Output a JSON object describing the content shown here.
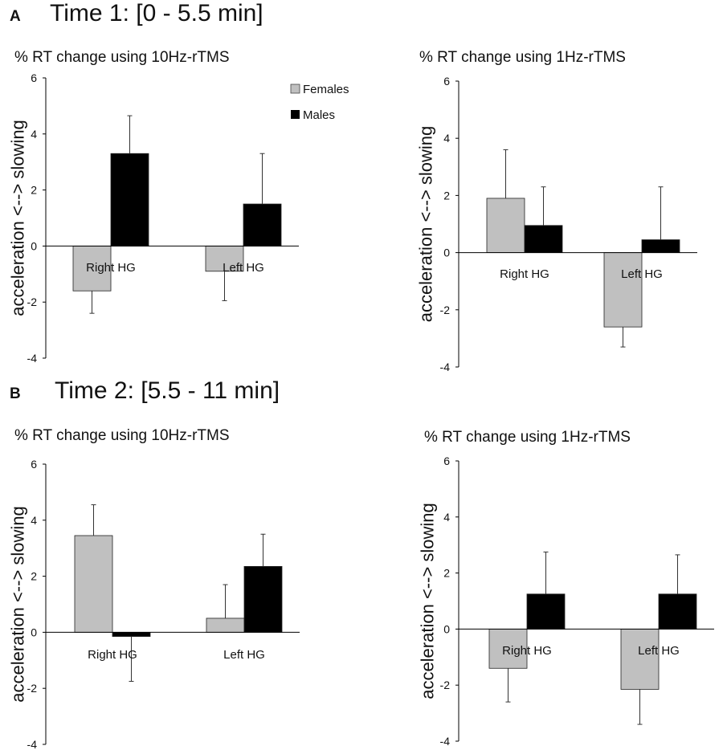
{
  "panels": [
    {
      "label": "A",
      "title": "Time 1: [0 - 5.5 min]"
    },
    {
      "label": "B",
      "title": "Time 2: [5.5 - 11 min]"
    }
  ],
  "legend": {
    "females": "Females",
    "males": "Males"
  },
  "colors": {
    "females": "#c0c0c0",
    "males": "#000000",
    "axis": "#000000"
  },
  "chart_data": [
    {
      "type": "bar",
      "panel": "A",
      "title": "% RT change using 10Hz-rTMS",
      "ylabel": "acceleration <--> slowing",
      "ylim": [
        -4,
        6
      ],
      "yticks": [
        -4,
        -2,
        0,
        2,
        4,
        6
      ],
      "categories": [
        "Right HG",
        "Left HG"
      ],
      "series": [
        {
          "name": "Females",
          "values": [
            -1.6,
            -0.9
          ],
          "errors": [
            0.8,
            1.05
          ]
        },
        {
          "name": "Males",
          "values": [
            3.3,
            1.5
          ],
          "errors": [
            1.35,
            1.8
          ]
        }
      ],
      "legend": "top-right"
    },
    {
      "type": "bar",
      "panel": "A",
      "title": "% RT change using 1Hz-rTMS",
      "ylabel": "acceleration <--> slowing",
      "ylim": [
        -4,
        6
      ],
      "yticks": [
        -4,
        -2,
        0,
        2,
        4,
        6
      ],
      "categories": [
        "Right HG",
        "Left HG"
      ],
      "series": [
        {
          "name": "Females",
          "values": [
            1.9,
            -2.6
          ],
          "errors": [
            1.7,
            0.7
          ]
        },
        {
          "name": "Males",
          "values": [
            0.95,
            0.45
          ],
          "errors": [
            1.35,
            1.85
          ]
        }
      ]
    },
    {
      "type": "bar",
      "panel": "B",
      "title": "% RT change using 10Hz-rTMS",
      "ylabel": "acceleration <--> slowing",
      "ylim": [
        -4,
        6
      ],
      "yticks": [
        -4,
        -2,
        0,
        2,
        4,
        6
      ],
      "categories": [
        "Right HG",
        "Left HG"
      ],
      "series": [
        {
          "name": "Females",
          "values": [
            3.45,
            0.5
          ],
          "errors": [
            1.1,
            1.2
          ]
        },
        {
          "name": "Males",
          "values": [
            -0.15,
            2.35
          ],
          "errors": [
            1.6,
            1.15
          ]
        }
      ]
    },
    {
      "type": "bar",
      "panel": "B",
      "title": "% RT change using 1Hz-rTMS",
      "ylabel": "acceleration <--> slowing",
      "ylim": [
        -4,
        6
      ],
      "yticks": [
        -4,
        -2,
        0,
        2,
        4,
        6
      ],
      "categories": [
        "Right HG",
        "Left HG"
      ],
      "series": [
        {
          "name": "Females",
          "values": [
            -1.4,
            -2.15
          ],
          "errors": [
            1.2,
            1.25
          ]
        },
        {
          "name": "Males",
          "values": [
            1.25,
            1.25
          ],
          "errors": [
            1.5,
            1.4
          ]
        }
      ]
    }
  ]
}
